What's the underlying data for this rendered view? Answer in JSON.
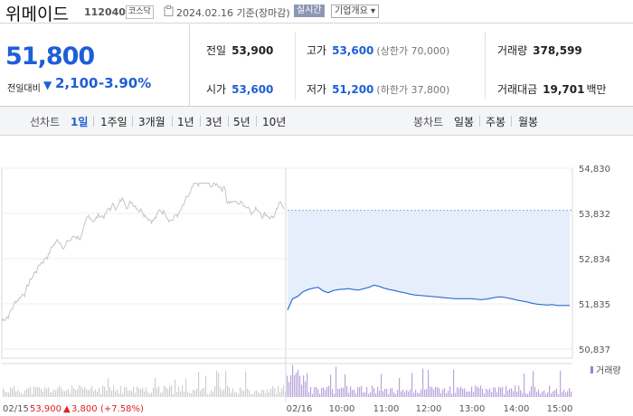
{
  "header": {
    "name": "위메이드",
    "code": "112040",
    "market": "코스닥",
    "date": "2024.02.16 기준(장마감)",
    "live_label": "실시간",
    "company_button": "기업개요 ▾"
  },
  "summary": {
    "price": "51,800",
    "change_label": "전일대비",
    "change_arrow": "▼",
    "change_value": "2,100",
    "change_pct": "-3.90%",
    "prev_close_label": "전일",
    "prev_close": "53,900",
    "open_label": "시가",
    "open": "53,600",
    "high_label": "고가",
    "high": "53,600",
    "upper_limit": "(상한가 70,000)",
    "low_label": "저가",
    "low": "51,200",
    "lower_limit": "(하한가 37,800)",
    "volume_label": "거래량",
    "volume": "378,599",
    "amount_label": "거래대금",
    "amount": "19,701",
    "amount_unit": "백만"
  },
  "tabs": {
    "line_label": "선차트",
    "periods": [
      "1일",
      "1주일",
      "3개월",
      "1년",
      "3년",
      "5년",
      "10년"
    ],
    "candle_label": "봉차트",
    "candles": [
      "일봉",
      "주봉",
      "월봉"
    ]
  },
  "colors": {
    "accent": "#1e5fd6",
    "down": "#1e5fd6",
    "up": "#e02020",
    "volume": "#9b7fcf"
  },
  "chart_data": {
    "type": "line",
    "ylim": [
      50837,
      54830
    ],
    "yticks": [
      "54,830",
      "53,832",
      "52,834",
      "51,835",
      "50,837"
    ],
    "xticks": [
      "02/16",
      "10:00",
      "11:00",
      "12:00",
      "13:00",
      "14:00",
      "15:00"
    ],
    "volume_label": "거래량",
    "prev_close": 53900,
    "series": [
      {
        "values": [
          51700,
          51950,
          52000,
          52100,
          52150,
          52180,
          52200,
          52120,
          52080,
          52130,
          52150,
          52160,
          52170,
          52150,
          52140,
          52170,
          52200,
          52250,
          52220,
          52180,
          52150,
          52130,
          52100,
          52080,
          52050,
          52030,
          52020,
          52010,
          52000,
          51990,
          51980,
          51970,
          51960,
          51950,
          51950,
          51950,
          51950,
          51940,
          51930,
          51940,
          51960,
          51980,
          51990,
          51970,
          51950,
          51920,
          51900,
          51880,
          51850,
          51830,
          51820,
          51810,
          51820,
          51800,
          51800
        ]
      }
    ]
  },
  "footer": {
    "prev_date": "02/15",
    "prev_close": "53,900",
    "prev_arrow": "▲",
    "prev_change": "3,800",
    "prev_pct": "(+7.58%)"
  }
}
